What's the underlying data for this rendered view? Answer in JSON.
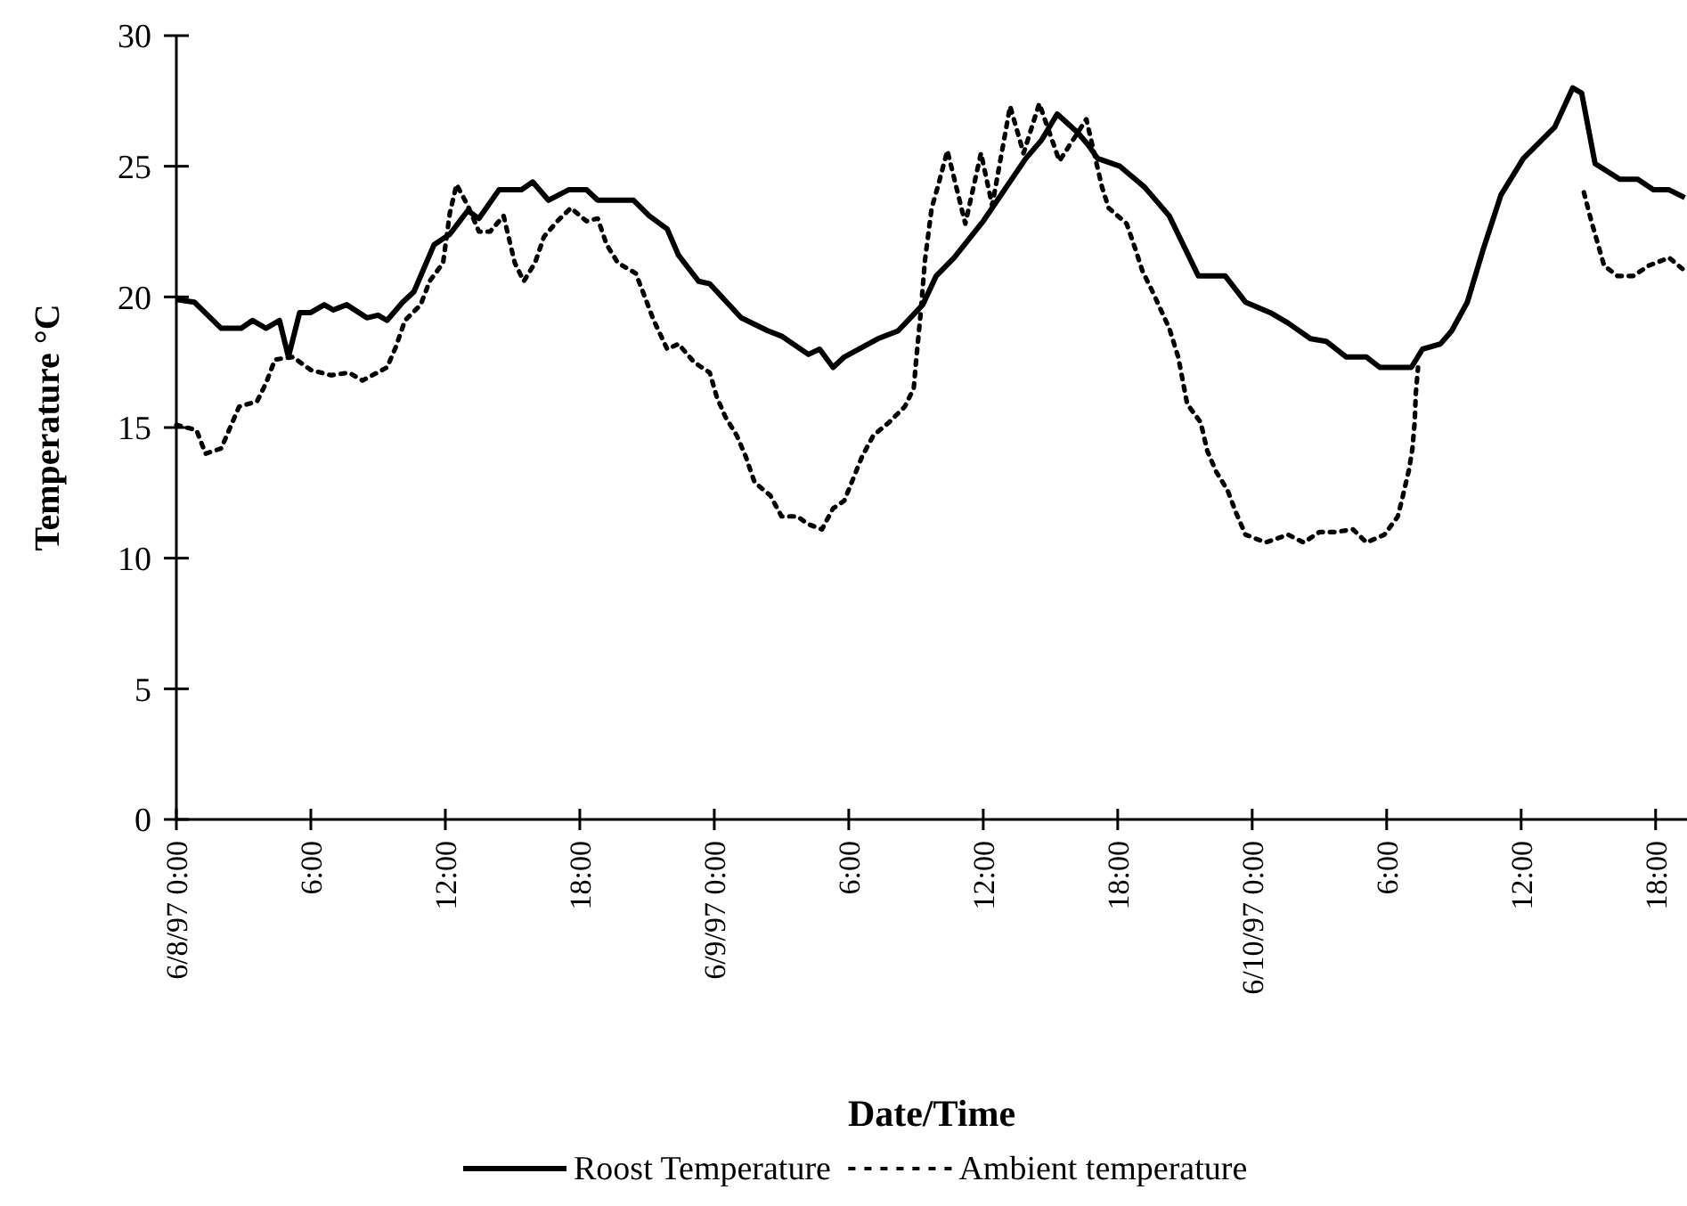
{
  "chart_data": {
    "type": "line",
    "xlabel": "Date/Time",
    "ylabel": "Temperature °C",
    "xlim": [
      "1997-06-08T00:00",
      "1997-06-10T19:24"
    ],
    "ylim": [
      0,
      30
    ],
    "yticks": [
      0,
      5,
      10,
      15,
      20,
      25,
      30
    ],
    "xticks": [
      {
        "value": "1997-06-08T00:00",
        "label": "6/8/97 0:00"
      },
      {
        "value": "1997-06-08T06:00",
        "label": "6:00"
      },
      {
        "value": "1997-06-08T12:00",
        "label": "12:00"
      },
      {
        "value": "1997-06-08T18:00",
        "label": "18:00"
      },
      {
        "value": "1997-06-09T00:00",
        "label": "6/9/97 0:00"
      },
      {
        "value": "1997-06-09T06:00",
        "label": "6:00"
      },
      {
        "value": "1997-06-09T12:00",
        "label": "12:00"
      },
      {
        "value": "1997-06-09T18:00",
        "label": "18:00"
      },
      {
        "value": "1997-06-10T00:00",
        "label": "6/10/97 0:00"
      },
      {
        "value": "1997-06-10T06:00",
        "label": "6:00"
      },
      {
        "value": "1997-06-10T12:00",
        "label": "12:00"
      },
      {
        "value": "1997-06-10T18:00",
        "label": "18:00"
      }
    ],
    "grid": false,
    "legend": "bottom",
    "marker": "none",
    "series": [
      {
        "name": "Roost Temperature",
        "color": "#000000",
        "line_style": "solid",
        "x": [
          "1997-06-08T00:00",
          "1997-06-08T00:48",
          "1997-06-08T02:00",
          "1997-06-08T02:54",
          "1997-06-08T03:24",
          "1997-06-08T04:00",
          "1997-06-08T04:36",
          "1997-06-08T05:00",
          "1997-06-08T05:30",
          "1997-06-08T06:00",
          "1997-06-08T06:36",
          "1997-06-08T07:00",
          "1997-06-08T07:36",
          "1997-06-08T08:30",
          "1997-06-08T09:00",
          "1997-06-08T09:24",
          "1997-06-08T10:06",
          "1997-06-08T10:36",
          "1997-06-08T11:00",
          "1997-06-08T11:30",
          "1997-06-08T12:12",
          "1997-06-08T13:00",
          "1997-06-08T13:30",
          "1997-06-08T14:24",
          "1997-06-08T15:24",
          "1997-06-08T15:54",
          "1997-06-08T16:36",
          "1997-06-08T17:30",
          "1997-06-08T18:18",
          "1997-06-08T18:48",
          "1997-06-08T20:24",
          "1997-06-08T21:06",
          "1997-06-08T21:54",
          "1997-06-08T22:24",
          "1997-06-08T23:18",
          "1997-06-08T23:48",
          "1997-06-09T01:12",
          "1997-06-09T02:24",
          "1997-06-09T03:00",
          "1997-06-09T04:12",
          "1997-06-09T04:42",
          "1997-06-09T05:18",
          "1997-06-09T05:48",
          "1997-06-09T07:18",
          "1997-06-09T08:12",
          "1997-06-09T09:18",
          "1997-06-09T09:54",
          "1997-06-09T10:42",
          "1997-06-09T12:00",
          "1997-06-09T13:54",
          "1997-06-09T14:36",
          "1997-06-09T15:18",
          "1997-06-09T16:12",
          "1997-06-09T16:42",
          "1997-06-09T17:06",
          "1997-06-09T18:06",
          "1997-06-09T19:12",
          "1997-06-09T20:18",
          "1997-06-09T21:36",
          "1997-06-09T22:48",
          "1997-06-09T23:42",
          "1997-06-10T00:48",
          "1997-06-10T01:36",
          "1997-06-10T02:36",
          "1997-06-10T03:18",
          "1997-06-10T04:12",
          "1997-06-10T05:06",
          "1997-06-10T05:42",
          "1997-06-10T07:06",
          "1997-06-10T07:36",
          "1997-06-10T08:24",
          "1997-06-10T08:54",
          "1997-06-10T09:36",
          "1997-06-10T10:18",
          "1997-06-10T11:06",
          "1997-06-10T12:06",
          "1997-06-10T13:30",
          "1997-06-10T14:18",
          "1997-06-10T14:42",
          "1997-06-10T15:18",
          "1997-06-10T16:24",
          "1997-06-10T17:12",
          "1997-06-10T17:54",
          "1997-06-10T18:36",
          "1997-06-10T19:18"
        ],
        "values": [
          19.9,
          19.8,
          18.8,
          18.8,
          19.1,
          18.8,
          19.1,
          17.7,
          19.4,
          19.4,
          19.7,
          19.5,
          19.7,
          19.2,
          19.3,
          19.1,
          19.8,
          20.2,
          21,
          22,
          22.4,
          23.3,
          23,
          24.1,
          24.1,
          24.4,
          23.7,
          24.1,
          24.1,
          23.7,
          23.7,
          23.1,
          22.6,
          21.6,
          20.6,
          20.5,
          19.2,
          18.7,
          18.5,
          17.8,
          18,
          17.3,
          17.7,
          18.4,
          18.7,
          19.7,
          20.8,
          21.5,
          22.9,
          25.3,
          26,
          27,
          26.3,
          25.8,
          25.3,
          25,
          24.2,
          23.1,
          20.8,
          20.8,
          19.8,
          19.4,
          19,
          18.4,
          18.3,
          17.7,
          17.7,
          17.3,
          17.3,
          18,
          18.2,
          18.7,
          19.8,
          21.8,
          23.9,
          25.3,
          26.5,
          28,
          27.8,
          25.1,
          24.5,
          24.5,
          24.1,
          24.1,
          23.8
        ]
      },
      {
        "name": "Ambient temperature",
        "color": "#000000",
        "line_style": "dotted",
        "x": [
          "1997-06-08T00:00",
          "1997-06-08T00:54",
          "1997-06-08T01:18",
          "1997-06-08T02:00",
          "1997-06-08T02:24",
          "1997-06-08T02:48",
          "1997-06-08T03:36",
          "1997-06-08T04:00",
          "1997-06-08T04:24",
          "1997-06-08T05:12",
          "1997-06-08T06:00",
          "1997-06-08T06:54",
          "1997-06-08T07:42",
          "1997-06-08T08:18",
          "1997-06-08T09:24",
          "1997-06-08T09:48",
          "1997-06-08T10:12",
          "1997-06-08T10:54",
          "1997-06-08T11:18",
          "1997-06-08T11:54",
          "1997-06-08T12:12",
          "1997-06-08T12:30",
          "1997-06-08T13:00",
          "1997-06-08T13:30",
          "1997-06-08T14:00",
          "1997-06-08T14:36",
          "1997-06-08T15:06",
          "1997-06-08T15:30",
          "1997-06-08T16:00",
          "1997-06-08T16:24",
          "1997-06-08T17:00",
          "1997-06-08T17:36",
          "1997-06-08T18:18",
          "1997-06-08T18:48",
          "1997-06-08T19:12",
          "1997-06-08T19:42",
          "1997-06-08T20:30",
          "1997-06-08T20:54",
          "1997-06-08T21:18",
          "1997-06-08T21:54",
          "1997-06-08T22:24",
          "1997-06-08T23:06",
          "1997-06-08T23:48",
          "1997-06-09T00:06",
          "1997-06-09T00:30",
          "1997-06-09T01:00",
          "1997-06-09T01:24",
          "1997-06-09T01:48",
          "1997-06-09T02:30",
          "1997-06-09T03:00",
          "1997-06-09T03:42",
          "1997-06-09T04:12",
          "1997-06-09T04:48",
          "1997-06-09T05:18",
          "1997-06-09T05:48",
          "1997-06-09T06:36",
          "1997-06-09T07:06",
          "1997-06-09T07:48",
          "1997-06-09T08:30",
          "1997-06-09T08:54",
          "1997-06-09T09:00",
          "1997-06-09T09:12",
          "1997-06-09T09:24",
          "1997-06-09T09:42",
          "1997-06-09T10:00",
          "1997-06-09T10:24",
          "1997-06-09T11:12",
          "1997-06-09T11:54",
          "1997-06-09T12:24",
          "1997-06-09T13:12",
          "1997-06-09T13:48",
          "1997-06-09T14:30",
          "1997-06-09T15:24",
          "1997-06-09T16:36",
          "1997-06-09T17:18",
          "1997-06-09T17:36",
          "1997-06-09T18:24",
          "1997-06-09T18:48",
          "1997-06-09T19:06",
          "1997-06-09T19:30",
          "1997-06-09T20:18",
          "1997-06-09T20:42",
          "1997-06-09T21:06",
          "1997-06-09T21:42",
          "1997-06-09T22:00",
          "1997-06-09T22:24",
          "1997-06-09T22:54",
          "1997-06-09T23:18",
          "1997-06-09T23:42",
          "1997-06-10T00:36",
          "1997-06-10T01:36",
          "1997-06-10T02:18",
          "1997-06-10T03:00",
          "1997-06-10T03:42",
          "1997-06-10T04:30",
          "1997-06-10T05:06",
          "1997-06-10T05:54",
          "1997-06-10T06:30",
          "1997-06-10T06:42",
          "1997-06-10T07:00",
          "1997-06-10T07:09",
          "1997-06-10T07:15",
          "1997-06-10T07:18",
          "1997-06-10T07:24",
          "1997-06-10T11:00",
          "1997-06-10T14:48",
          "1997-06-10T15:06",
          "1997-06-10T15:24",
          "1997-06-10T15:42",
          "1997-06-10T16:18",
          "1997-06-10T17:00",
          "1997-06-10T17:42",
          "1997-06-10T18:36",
          "1997-06-10T19:18"
        ],
        "values": [
          15.1,
          14.9,
          14,
          14.2,
          15,
          15.8,
          16,
          16.7,
          17.6,
          17.7,
          17.2,
          17,
          17.1,
          16.8,
          17.3,
          18.1,
          19.1,
          19.7,
          20.6,
          21.3,
          23.2,
          24.3,
          23.5,
          22.5,
          22.5,
          23.1,
          21.3,
          20.6,
          21.3,
          22.3,
          22.9,
          23.4,
          22.9,
          23,
          22,
          21.3,
          20.9,
          20,
          19.1,
          18,
          18.2,
          17.5,
          17.1,
          16.2,
          15.4,
          14.7,
          13.9,
          12.9,
          12.4,
          11.6,
          11.6,
          11.3,
          11.1,
          11.9,
          12.2,
          13.9,
          14.7,
          15.2,
          15.8,
          16.5,
          17.5,
          19.3,
          21.4,
          23.4,
          24.3,
          25.6,
          22.8,
          25.5,
          23.5,
          27.3,
          25.5,
          27.4,
          25.2,
          26.8,
          24.2,
          23.4,
          22.8,
          21.8,
          21,
          20.3,
          18.8,
          17.7,
          15.9,
          15.2,
          14.1,
          13.3,
          12.6,
          11.7,
          10.9,
          10.6,
          10.9,
          10.6,
          11,
          11,
          11.1,
          10.6,
          10.9,
          11.6,
          12.3,
          13.4,
          14.2,
          15.2,
          16.3,
          17.3,
          null,
          24,
          23,
          22.1,
          21.2,
          20.8,
          20.8,
          21.2,
          21.5,
          21
        ]
      }
    ]
  }
}
